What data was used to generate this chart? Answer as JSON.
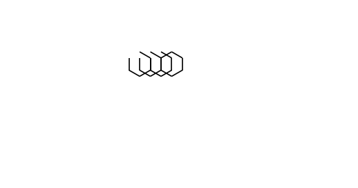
{
  "background_color": "#ffffff",
  "bond_color": "#000000",
  "lw": 1.3,
  "font_size": 7.5,
  "font_size_small": 6.5
}
